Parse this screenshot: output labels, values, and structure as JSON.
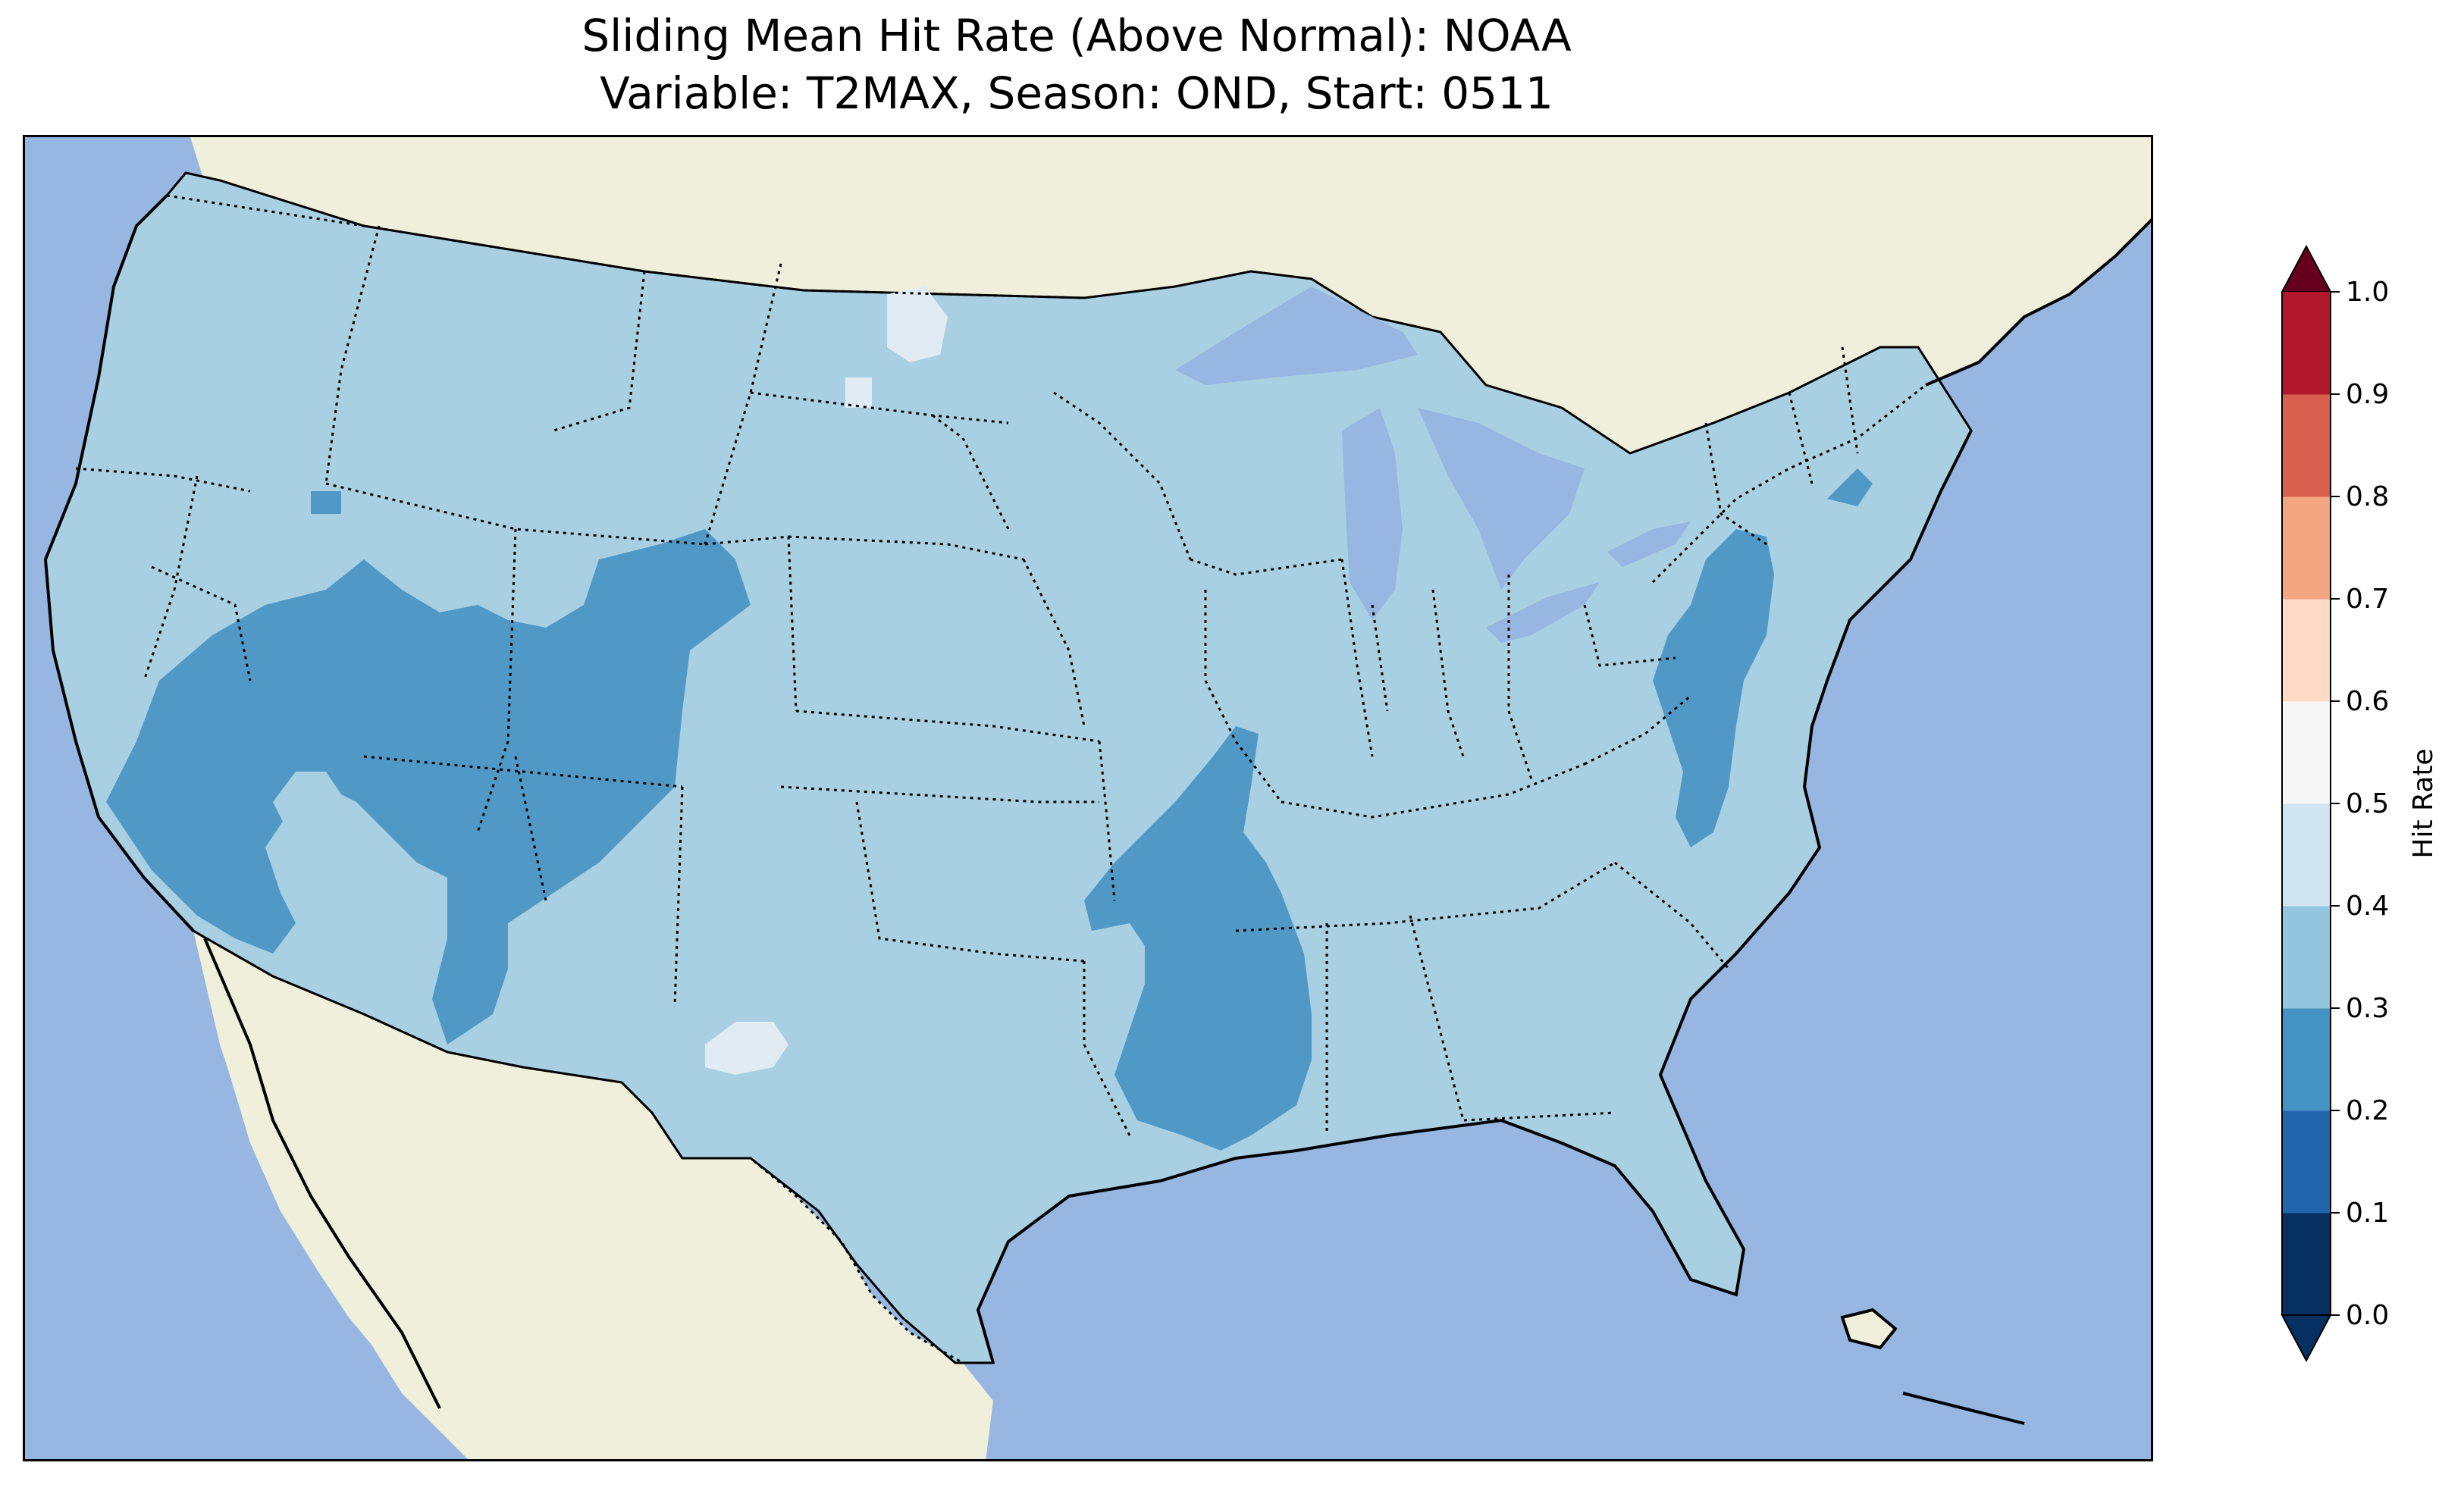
{
  "title_line1": "Sliding Mean Hit Rate (Above Normal): NOAA",
  "title_line2": "Variable: T2MAX, Season: OND, Start: 0511",
  "colorbar": {
    "label": "Hit Rate",
    "ticks": [
      "0.0",
      "0.1",
      "0.2",
      "0.3",
      "0.4",
      "0.5",
      "0.6",
      "0.7",
      "0.8",
      "0.9",
      "1.0"
    ],
    "colors": [
      "#053061",
      "#2166ac",
      "#4393c3",
      "#92c5de",
      "#d1e5f0",
      "#f7f7f7",
      "#fddbc7",
      "#f4a582",
      "#d6604d",
      "#b2182b"
    ],
    "under_color": "#053061",
    "over_color": "#67001f",
    "extend": "both"
  },
  "map": {
    "ocean_color": "#97b6e1",
    "land_color": "#efefdb",
    "dominant_level_color": "#a9cfe3",
    "low_level_color": "#5099c7",
    "high_level_color": "#e0ebf3",
    "dominant_range": "0.3–0.4",
    "low_range": "0.2–0.3",
    "high_range": "0.4–0.5"
  }
}
